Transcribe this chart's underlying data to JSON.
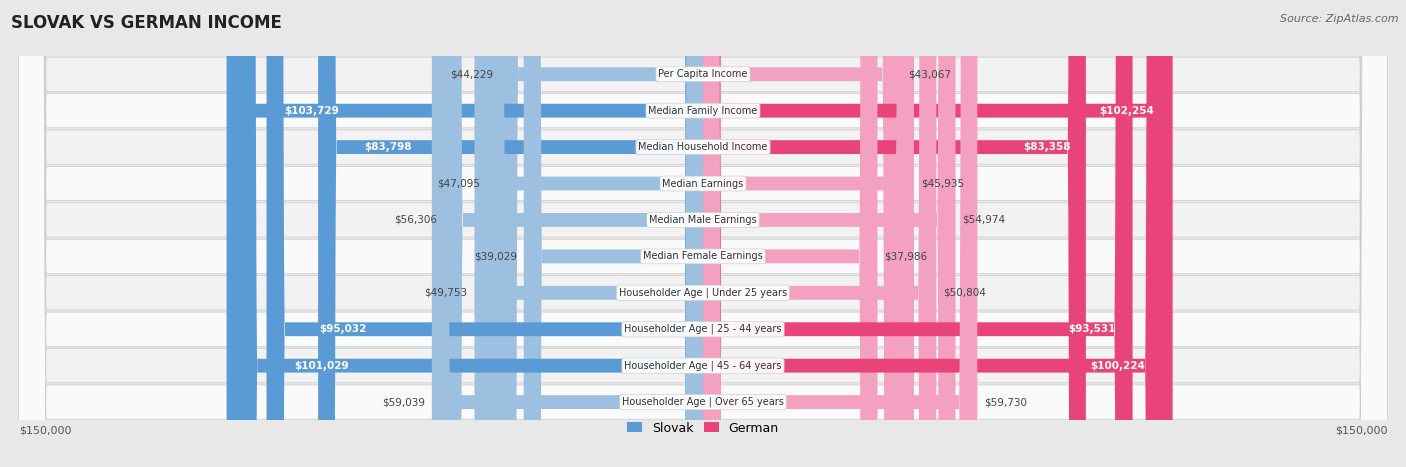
{
  "title": "SLOVAK VS GERMAN INCOME",
  "source": "Source: ZipAtlas.com",
  "categories": [
    "Per Capita Income",
    "Median Family Income",
    "Median Household Income",
    "Median Earnings",
    "Median Male Earnings",
    "Median Female Earnings",
    "Householder Age | Under 25 years",
    "Householder Age | 25 - 44 years",
    "Householder Age | 45 - 64 years",
    "Householder Age | Over 65 years"
  ],
  "slovak_values": [
    44229,
    103729,
    83798,
    47095,
    56306,
    39029,
    49753,
    95032,
    101029,
    59039
  ],
  "german_values": [
    43067,
    102254,
    83358,
    45935,
    54974,
    37986,
    50804,
    93531,
    100224,
    59730
  ],
  "slovak_color_light": "#9dbfe0",
  "slovak_color_dark": "#5b9bd5",
  "german_color_light": "#f4a0c0",
  "german_color_dark": "#e8447a",
  "max_value": 150000,
  "bg_color": "#e8e8e8",
  "row_bg_even": "#f2f2f2",
  "row_bg_odd": "#fafafa",
  "label_threshold": 75000
}
